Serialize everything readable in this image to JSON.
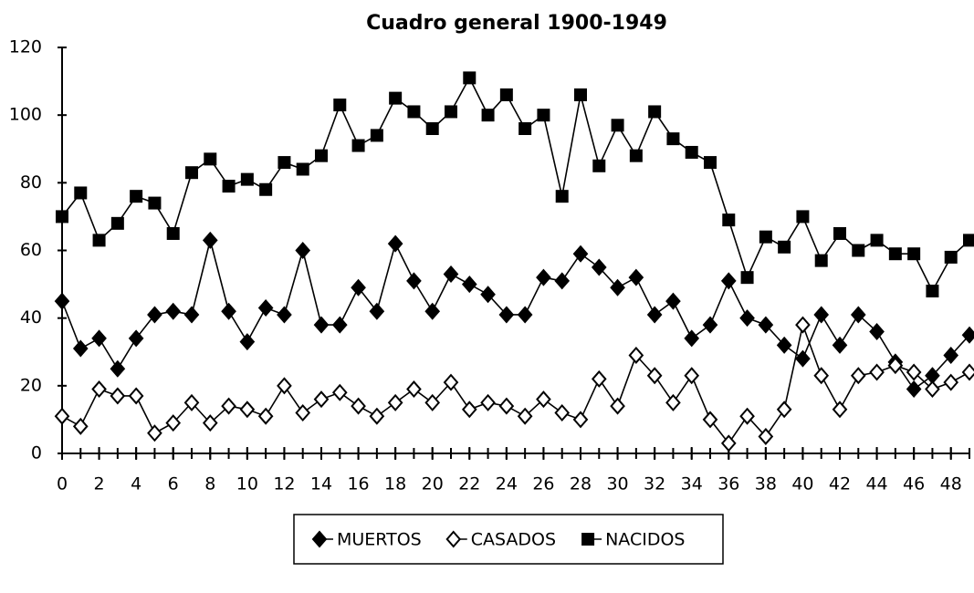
{
  "chart_data": {
    "type": "line",
    "title": "Cuadro general 1900-1949",
    "x": [
      0,
      1,
      2,
      3,
      4,
      5,
      6,
      7,
      8,
      9,
      10,
      11,
      12,
      13,
      14,
      15,
      16,
      17,
      18,
      19,
      20,
      21,
      22,
      23,
      24,
      25,
      26,
      27,
      28,
      29,
      30,
      31,
      32,
      33,
      34,
      35,
      36,
      37,
      38,
      39,
      40,
      41,
      42,
      43,
      44,
      45,
      46,
      47,
      48,
      49
    ],
    "series": [
      {
        "name": "MUERTOS",
        "color": "#000000",
        "marker": "diamond-filled",
        "values": [
          45,
          31,
          34,
          25,
          34,
          41,
          42,
          41,
          63,
          42,
          33,
          43,
          41,
          60,
          38,
          38,
          49,
          42,
          62,
          51,
          42,
          53,
          50,
          47,
          41,
          41,
          52,
          51,
          59,
          55,
          49,
          52,
          41,
          45,
          34,
          38,
          51,
          40,
          38,
          32,
          28,
          41,
          32,
          41,
          36,
          27,
          19,
          23,
          29,
          35
        ]
      },
      {
        "name": "CASADOS",
        "color": "#000000",
        "marker": "diamond-open",
        "values": [
          11,
          8,
          19,
          17,
          17,
          6,
          9,
          15,
          9,
          14,
          13,
          11,
          20,
          12,
          16,
          18,
          14,
          11,
          15,
          19,
          15,
          21,
          13,
          15,
          14,
          11,
          16,
          12,
          10,
          22,
          14,
          29,
          23,
          15,
          23,
          10,
          3,
          11,
          5,
          13,
          38,
          23,
          13,
          23,
          24,
          26,
          24,
          19,
          21,
          24
        ]
      },
      {
        "name": "NACIDOS",
        "color": "#000000",
        "marker": "square-filled",
        "values": [
          70,
          77,
          63,
          68,
          76,
          74,
          65,
          83,
          87,
          79,
          81,
          78,
          86,
          84,
          88,
          103,
          91,
          94,
          105,
          101,
          96,
          101,
          111,
          100,
          106,
          96,
          100,
          76,
          106,
          85,
          97,
          88,
          101,
          93,
          89,
          86,
          69,
          52,
          64,
          61,
          70,
          57,
          65,
          60,
          63,
          59,
          59,
          48,
          58,
          63
        ]
      }
    ],
    "xlim": [
      0,
      49
    ],
    "xticks": [
      0,
      2,
      4,
      6,
      8,
      10,
      12,
      14,
      16,
      18,
      20,
      22,
      24,
      26,
      28,
      30,
      32,
      34,
      36,
      38,
      40,
      42,
      44,
      46,
      48
    ],
    "ylim": [
      0,
      120
    ],
    "yticks": [
      0,
      20,
      40,
      60,
      80,
      100,
      120
    ],
    "legend": "bottom"
  }
}
